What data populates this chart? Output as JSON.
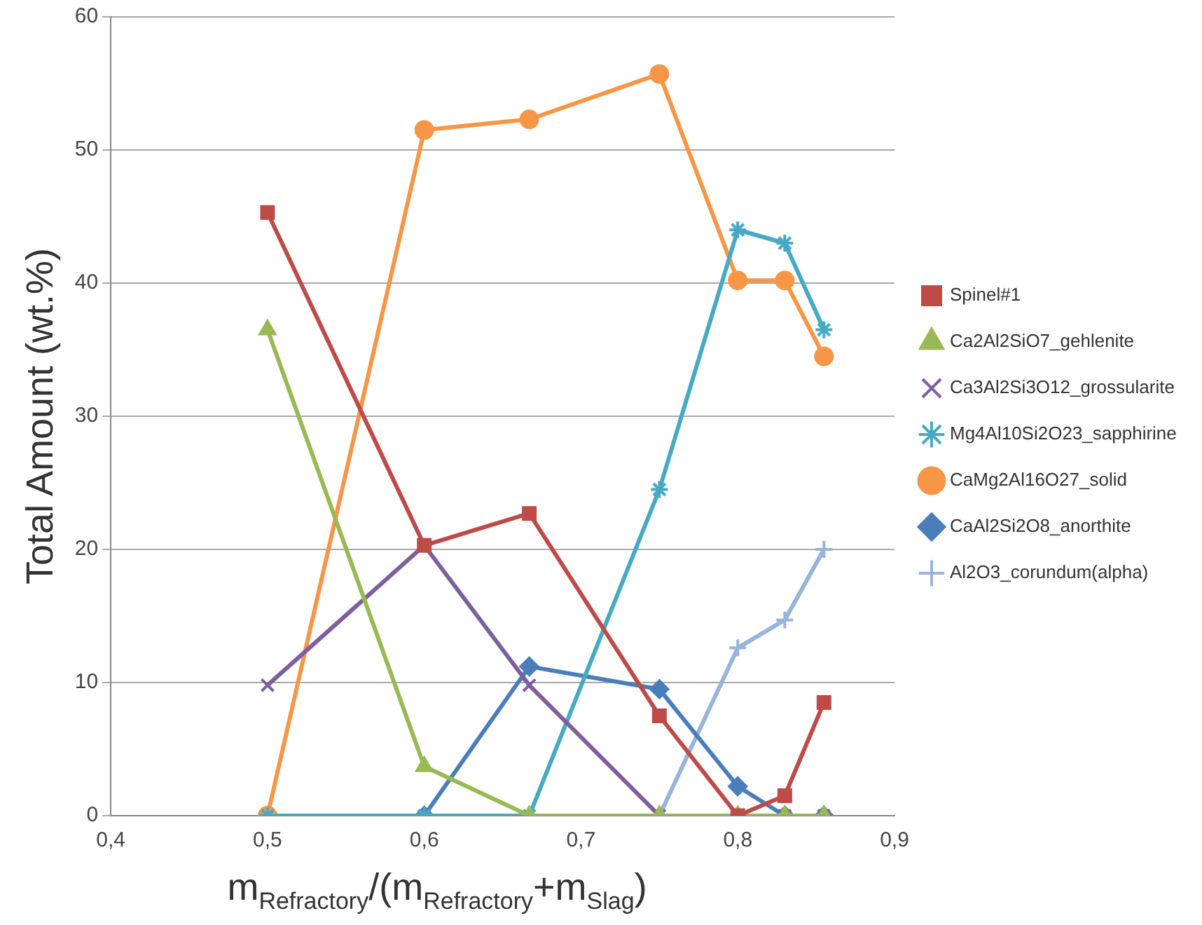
{
  "chart_data": {
    "type": "line",
    "xlabel": "m$_{Refractory}$/(m$_{Refractory}$+m$_{Slag}$)",
    "ylabel": "Total Amount (wt.%)",
    "x": [
      0.5,
      0.6,
      0.667,
      0.75,
      0.8,
      0.83,
      0.855
    ],
    "xlim": [
      0.4,
      0.9
    ],
    "xticks": [
      {
        "value": 0.4,
        "label": "0,4"
      },
      {
        "value": 0.5,
        "label": "0,5"
      },
      {
        "value": 0.6,
        "label": "0,6"
      },
      {
        "value": 0.7,
        "label": "0,7"
      },
      {
        "value": 0.8,
        "label": "0,8"
      },
      {
        "value": 0.9,
        "label": "0,9"
      }
    ],
    "ylim": [
      0,
      60
    ],
    "yticks": [
      0,
      10,
      20,
      30,
      40,
      50,
      60
    ],
    "grid": "y",
    "legend": "right",
    "series": [
      {
        "name": "Spinel#1",
        "color": "#be4b48",
        "marker": "square",
        "values": [
          45.3,
          20.3,
          22.7,
          7.5,
          0,
          1.5,
          8.5
        ]
      },
      {
        "name": "Ca2Al2SiO7_gehlenite",
        "color": "#98b954",
        "marker": "triangle",
        "values": [
          36.5,
          3.7,
          0,
          0,
          0,
          0,
          0
        ]
      },
      {
        "name": "Ca3Al2Si3O12_grossularite",
        "color": "#7d5fa0",
        "marker": "cross",
        "values": [
          9.8,
          20.3,
          9.8,
          0,
          0,
          0,
          0
        ]
      },
      {
        "name": "Mg4Al10Si2O23_sapphirine",
        "color": "#46aac5",
        "marker": "cross",
        "values": [
          0,
          0,
          0,
          24.5,
          44,
          43,
          36.5
        ]
      },
      {
        "name": "CaMg2Al16O27_solid",
        "color": "#f79646",
        "marker": "circle",
        "values": [
          0,
          51.5,
          52.3,
          55.7,
          40.2,
          40.2,
          34.5
        ]
      },
      {
        "name": "CaAl2Si2O8_anorthite",
        "color": "#4a7ebb",
        "marker": "diamond",
        "values": [
          0,
          0,
          11.2,
          9.5,
          2.2,
          0,
          0
        ]
      },
      {
        "name": "Al2O3_corundum(alpha)",
        "color": "#98b3dc",
        "marker": "cross",
        "values": [
          0,
          0,
          0,
          0,
          12.6,
          14.7,
          20
        ]
      }
    ]
  }
}
